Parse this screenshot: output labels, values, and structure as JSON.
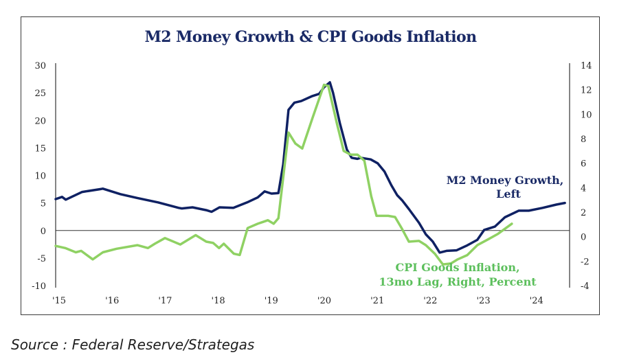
{
  "source_text": "Source : Federal Reserve/Strategas",
  "colors": {
    "m2": "#0f2163",
    "cpi": "#8fd163",
    "title": "#1a2a66",
    "cpi_label": "#5cbf5c"
  },
  "chart_data": {
    "type": "line",
    "title": "M2 Money Growth & CPI Goods Inflation",
    "xlabel": "",
    "x_ticks": [
      "'15",
      "'16",
      "'17",
      "'18",
      "'19",
      "'20",
      "'21",
      "'22",
      "'23",
      "'24"
    ],
    "xlim": [
      2015.0,
      2024.69
    ],
    "y_left": {
      "ylim": [
        -10,
        30
      ],
      "ticks": [
        "30",
        "25",
        "20",
        "15",
        "10",
        "5",
        "0",
        "-5",
        "-10"
      ]
    },
    "y_right": {
      "ylim": [
        -4,
        14
      ],
      "ticks": [
        "14",
        "12",
        "10",
        "8",
        "6",
        "4",
        "2",
        "0",
        "-2",
        "-4"
      ]
    },
    "grid": false,
    "zero_line": true,
    "series": [
      {
        "name": "M2 Money Growth, Left",
        "label_lines": [
          "M2 Money Growth,",
          "Left"
        ],
        "axis": "left",
        "x": [
          2015.0,
          2015.12,
          2015.19,
          2015.5,
          2015.83,
          2015.89,
          2016.22,
          2016.54,
          2016.93,
          2017.32,
          2017.38,
          2017.58,
          2017.84,
          2017.94,
          2018.09,
          2018.35,
          2018.61,
          2018.81,
          2018.94,
          2019.07,
          2019.2,
          2019.29,
          2019.39,
          2019.5,
          2019.63,
          2019.84,
          2019.97,
          2020.06,
          2020.17,
          2020.23,
          2020.36,
          2020.49,
          2020.58,
          2020.69,
          2020.75,
          2020.94,
          2021.07,
          2021.2,
          2021.33,
          2021.44,
          2021.53,
          2021.66,
          2021.85,
          2021.98,
          2022.11,
          2022.24,
          2022.37,
          2022.56,
          2022.76,
          2022.95,
          2023.08,
          2023.28,
          2023.47,
          2023.73,
          2023.92,
          2024.18,
          2024.44,
          2024.6
        ],
        "values": [
          5.7,
          6.1,
          5.6,
          7.0,
          7.5,
          7.6,
          6.6,
          5.9,
          5.1,
          4.1,
          4.0,
          4.2,
          3.7,
          3.4,
          4.2,
          4.1,
          5.1,
          6.0,
          7.1,
          6.7,
          6.8,
          12.0,
          21.9,
          23.2,
          23.5,
          24.4,
          24.8,
          26.0,
          26.9,
          25.0,
          19.4,
          14.7,
          13.2,
          13.0,
          13.2,
          12.9,
          12.2,
          10.7,
          8.2,
          6.4,
          5.5,
          3.9,
          1.4,
          -0.7,
          -2.0,
          -4.0,
          -3.7,
          -3.6,
          -2.7,
          -1.7,
          0.1,
          0.7,
          2.4,
          3.6,
          3.6,
          4.1,
          4.7,
          5.0
        ]
      },
      {
        "name": "CPI Goods Inflation, 13mo Lag, Right, Percent",
        "label_lines": [
          "CPI Goods Inflation,",
          "13mo Lag, Right, Percent"
        ],
        "axis": "right",
        "x": [
          2015.0,
          2015.18,
          2015.38,
          2015.48,
          2015.7,
          2015.89,
          2016.15,
          2016.54,
          2016.74,
          2016.87,
          2017.06,
          2017.35,
          2017.64,
          2017.84,
          2017.97,
          2018.08,
          2018.17,
          2018.36,
          2018.47,
          2018.62,
          2018.81,
          2019.0,
          2019.11,
          2019.2,
          2019.39,
          2019.52,
          2019.65,
          2019.84,
          2020.06,
          2020.14,
          2020.3,
          2020.43,
          2020.56,
          2020.69,
          2020.82,
          2020.95,
          2021.05,
          2021.27,
          2021.4,
          2021.53,
          2021.66,
          2021.85,
          2021.98,
          2022.15,
          2022.3,
          2022.45,
          2022.58,
          2022.76,
          2022.95,
          2023.15,
          2023.34,
          2023.6
        ],
        "values": [
          -0.76,
          -0.93,
          -1.28,
          -1.16,
          -1.86,
          -1.28,
          -0.99,
          -0.7,
          -0.93,
          -0.58,
          -0.12,
          -0.64,
          0.12,
          -0.41,
          -0.52,
          -0.93,
          -0.58,
          -1.4,
          -1.5,
          0.7,
          1.05,
          1.34,
          1.05,
          1.5,
          8.5,
          7.6,
          7.2,
          9.65,
          12.4,
          12.3,
          9.3,
          7.0,
          6.7,
          6.7,
          6.2,
          3.3,
          1.7,
          1.7,
          1.6,
          0.64,
          -0.41,
          -0.35,
          -0.7,
          -1.4,
          -2.27,
          -2.2,
          -1.86,
          -1.51,
          -0.7,
          -0.23,
          0.23,
          1.05
        ]
      }
    ]
  }
}
